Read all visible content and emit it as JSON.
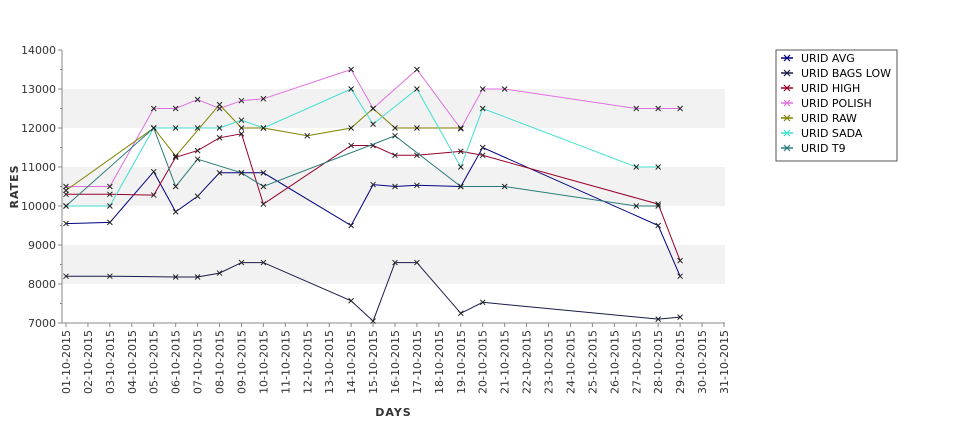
{
  "chart_data": {
    "type": "line",
    "title": "",
    "xlabel": "DAYS",
    "ylabel": "RATES",
    "ylim": [
      7000,
      14000
    ],
    "yticks": [
      7000,
      8000,
      9000,
      10000,
      11000,
      12000,
      13000,
      14000
    ],
    "grid": "alternating horizontal bands",
    "legend_position": "top-right",
    "categories": [
      "01-10-2015",
      "02-10-2015",
      "03-10-2015",
      "04-10-2015",
      "05-10-2015",
      "06-10-2015",
      "07-10-2015",
      "08-10-2015",
      "09-10-2015",
      "10-10-2015",
      "11-10-2015",
      "12-10-2015",
      "13-10-2015",
      "14-10-2015",
      "15-10-2015",
      "16-10-2015",
      "17-10-2015",
      "18-10-2015",
      "19-10-2015",
      "20-10-2015",
      "21-10-2015",
      "22-10-2015",
      "23-10-2015",
      "24-10-2015",
      "25-10-2015",
      "26-10-2015",
      "27-10-2015",
      "28-10-2015",
      "29-10-2015",
      "30-10-2015",
      "31-10-2015"
    ],
    "series": [
      {
        "name": "URID AVG",
        "color": "#000080",
        "points": [
          [
            1,
            9550
          ],
          [
            3,
            9580
          ],
          [
            5,
            10880
          ],
          [
            6,
            9850
          ],
          [
            7,
            10250
          ],
          [
            8,
            10850
          ],
          [
            9,
            10850
          ],
          [
            10,
            10850
          ],
          [
            14,
            9500
          ],
          [
            15,
            10550
          ],
          [
            16,
            10500
          ],
          [
            17,
            10530
          ],
          [
            19,
            10500
          ],
          [
            20,
            11500
          ],
          [
            28,
            9500
          ],
          [
            29,
            8200
          ]
        ]
      },
      {
        "name": "URID BAGS LOW",
        "color": "#1a1a4a",
        "points": [
          [
            1,
            8200
          ],
          [
            3,
            8200
          ],
          [
            6,
            8180
          ],
          [
            7,
            8180
          ],
          [
            8,
            8280
          ],
          [
            9,
            8550
          ],
          [
            10,
            8550
          ],
          [
            14,
            7570
          ],
          [
            15,
            7050
          ],
          [
            16,
            8550
          ],
          [
            17,
            8550
          ],
          [
            19,
            7250
          ],
          [
            20,
            7530
          ],
          [
            28,
            7100
          ],
          [
            29,
            7150
          ]
        ]
      },
      {
        "name": "URID HIGH",
        "color": "#99002b",
        "points": [
          [
            1,
            10300
          ],
          [
            3,
            10300
          ],
          [
            5,
            10280
          ],
          [
            6,
            11250
          ],
          [
            7,
            11420
          ],
          [
            8,
            11750
          ],
          [
            9,
            11850
          ],
          [
            10,
            10050
          ],
          [
            14,
            11550
          ],
          [
            15,
            11550
          ],
          [
            16,
            11300
          ],
          [
            17,
            11300
          ],
          [
            19,
            11400
          ],
          [
            20,
            11300
          ],
          [
            28,
            10050
          ],
          [
            29,
            8600
          ]
        ]
      },
      {
        "name": "URID POLISH",
        "color": "#e070e0",
        "points": [
          [
            1,
            10500
          ],
          [
            3,
            10500
          ],
          [
            5,
            12500
          ],
          [
            6,
            12500
          ],
          [
            7,
            12730
          ],
          [
            8,
            12500
          ],
          [
            9,
            12700
          ],
          [
            10,
            12750
          ],
          [
            14,
            13500
          ],
          [
            15,
            12500
          ],
          [
            17,
            13500
          ],
          [
            19,
            11980
          ],
          [
            20,
            13000
          ],
          [
            21,
            13000
          ],
          [
            27,
            12500
          ],
          [
            28,
            12500
          ],
          [
            29,
            12500
          ]
        ]
      },
      {
        "name": "URID RAW",
        "color": "#808000",
        "points": [
          [
            1,
            10400
          ],
          [
            5,
            12000
          ],
          [
            6,
            11280
          ],
          [
            8,
            12600
          ],
          [
            9,
            12000
          ],
          [
            10,
            12000
          ],
          [
            12,
            11800
          ],
          [
            14,
            12000
          ],
          [
            15,
            12500
          ],
          [
            16,
            12000
          ],
          [
            17,
            12000
          ],
          [
            19,
            12000
          ]
        ]
      },
      {
        "name": "URID SADA",
        "color": "#40e0d0",
        "points": [
          [
            1,
            10000
          ],
          [
            3,
            10000
          ],
          [
            5,
            12000
          ],
          [
            6,
            12000
          ],
          [
            7,
            12000
          ],
          [
            8,
            12000
          ],
          [
            9,
            12200
          ],
          [
            10,
            12000
          ],
          [
            14,
            13000
          ],
          [
            15,
            12100
          ],
          [
            17,
            13000
          ],
          [
            19,
            11000
          ],
          [
            20,
            12500
          ],
          [
            27,
            11000
          ],
          [
            28,
            11000
          ]
        ]
      },
      {
        "name": "URID T9",
        "color": "#2a7a7a",
        "points": [
          [
            1,
            10000
          ],
          [
            5,
            12000
          ],
          [
            6,
            10500
          ],
          [
            7,
            11200
          ],
          [
            9,
            10850
          ],
          [
            10,
            10500
          ],
          [
            16,
            11800
          ],
          [
            19,
            10500
          ],
          [
            21,
            10500
          ],
          [
            27,
            10000
          ],
          [
            28,
            10000
          ]
        ]
      }
    ]
  }
}
